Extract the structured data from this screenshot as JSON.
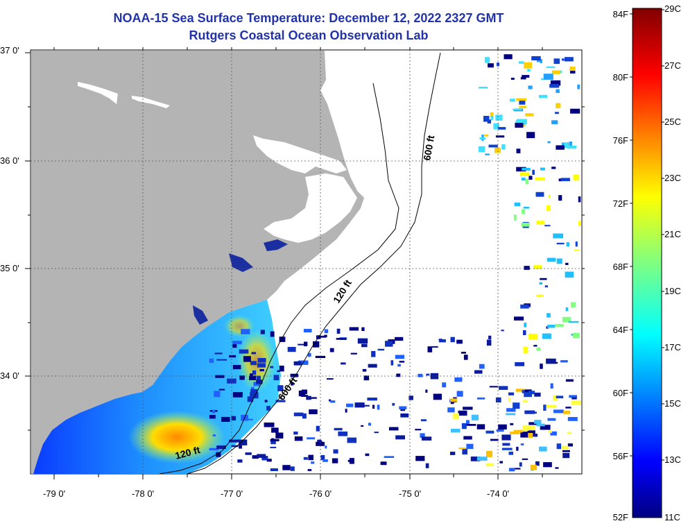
{
  "title": {
    "line1": "NOAA-15 Sea Surface Temperature:  December 12, 2022 2327 GMT",
    "line2": "Rutgers Coastal Ocean Observation Lab"
  },
  "axes": {
    "lat_labels": [
      "37 0'",
      "36 0'",
      "35 0'",
      "34 0'"
    ],
    "lon_labels": [
      "-79 0'",
      "-78 0'",
      "-77 0'",
      "-76 0'",
      "-75 0'",
      "-74 0'"
    ]
  },
  "contours": {
    "c600_north": "600 ft",
    "c120_mid": "120 ft",
    "c600_south": "600 ft",
    "c120_south": "120 ft"
  },
  "colorbar": {
    "fahrenheit": [
      "84F",
      "80F",
      "76F",
      "72F",
      "68F",
      "64F",
      "60F",
      "56F",
      "52F"
    ],
    "celsius": [
      "29C",
      "27C",
      "25C",
      "23C",
      "21C",
      "19C",
      "17C",
      "15C",
      "13C",
      "11C"
    ]
  },
  "colors": {
    "land": "#b4b4b4",
    "title": "#2233aa",
    "cold": "#000080",
    "warm": "#800000"
  }
}
